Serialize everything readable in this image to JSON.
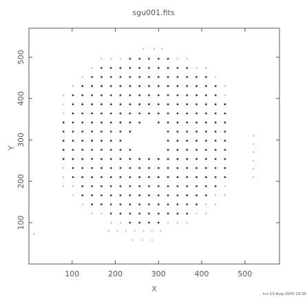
{
  "chart_data": {
    "type": "scatter",
    "title": "sgu001.fits",
    "xlabel": "X",
    "ylabel": "Y",
    "xlim": [
      0,
      580
    ],
    "ylim": [
      0,
      570
    ],
    "xticks": [
      100,
      200,
      300,
      400,
      500
    ],
    "yticks": [
      100,
      200,
      300,
      400,
      500
    ],
    "grid": false,
    "legend": "none",
    "grid_spacing": 22,
    "points_description": "spot grid (22-unit pitch) forming a disc centred near (275,300) radius ~225 with a central hole radius ~45",
    "extra_points": [
      [
        12,
        72
      ],
      [
        185,
        80
      ],
      [
        205,
        80
      ],
      [
        225,
        80
      ],
      [
        245,
        80
      ],
      [
        265,
        80
      ],
      [
        285,
        80
      ],
      [
        305,
        80
      ],
      [
        240,
        58
      ],
      [
        262,
        58
      ],
      [
        285,
        58
      ],
      [
        265,
        520
      ],
      [
        290,
        520
      ],
      [
        308,
        520
      ],
      [
        520,
        310
      ],
      [
        520,
        290
      ],
      [
        520,
        270
      ],
      [
        520,
        250
      ],
      [
        520,
        230
      ],
      [
        520,
        210
      ]
    ],
    "footer": "tcs 13-Aug-2000 19:35"
  }
}
